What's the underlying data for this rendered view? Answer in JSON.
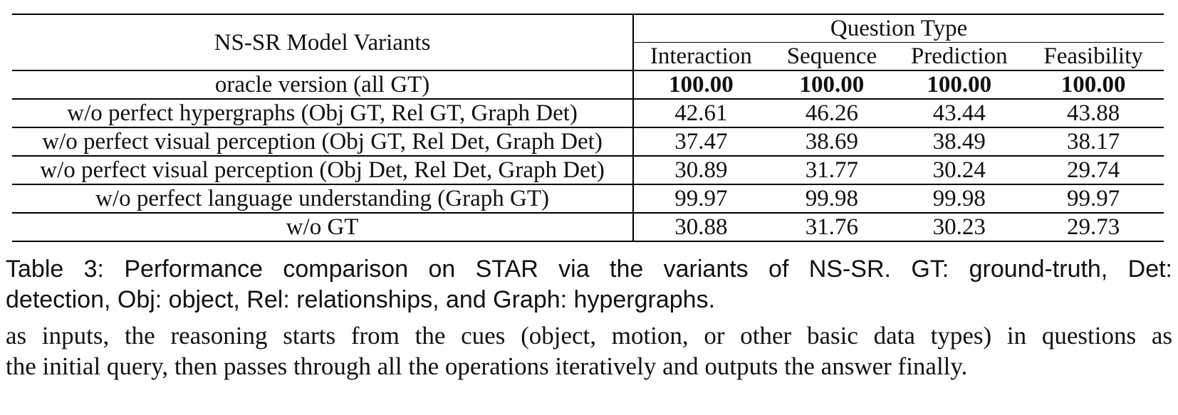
{
  "table": {
    "model_header": "NS-SR Model Variants",
    "group_header": "Question Type",
    "columns": [
      "Interaction",
      "Sequence",
      "Prediction",
      "Feasibility"
    ],
    "rows": [
      {
        "variant": "oracle version (all GT)",
        "values": [
          "100.00",
          "100.00",
          "100.00",
          "100.00"
        ],
        "bold": true
      },
      {
        "variant": "w/o perfect hypergraphs (Obj GT, Rel GT, Graph Det)",
        "values": [
          "42.61",
          "46.26",
          "43.44",
          "43.88"
        ]
      },
      {
        "variant": "w/o perfect visual perception (Obj GT, Rel Det, Graph Det)",
        "values": [
          "37.47",
          "38.69",
          "38.49",
          "38.17"
        ]
      },
      {
        "variant": "w/o perfect visual perception (Obj Det, Rel Det, Graph Det)",
        "values": [
          "30.89",
          "31.77",
          "30.24",
          "29.74"
        ]
      },
      {
        "variant": "w/o perfect language understanding (Graph GT)",
        "values": [
          "99.97",
          "99.98",
          "99.98",
          "99.97"
        ]
      },
      {
        "variant": "w/o GT",
        "values": [
          "30.88",
          "31.76",
          "30.23",
          "29.73"
        ]
      }
    ]
  },
  "caption": {
    "line1": "Table 3: Performance comparison on STAR via the variants of NS-SR. GT: ground-truth, Det:",
    "line2": "detection, Obj: object, Rel: relationships, and Graph: hypergraphs."
  },
  "body": {
    "line1": "as inputs, the reasoning starts from the cues (object, motion, or other basic data types) in questions as",
    "line2": "the initial query, then passes through all the operations iteratively and outputs the answer finally."
  }
}
